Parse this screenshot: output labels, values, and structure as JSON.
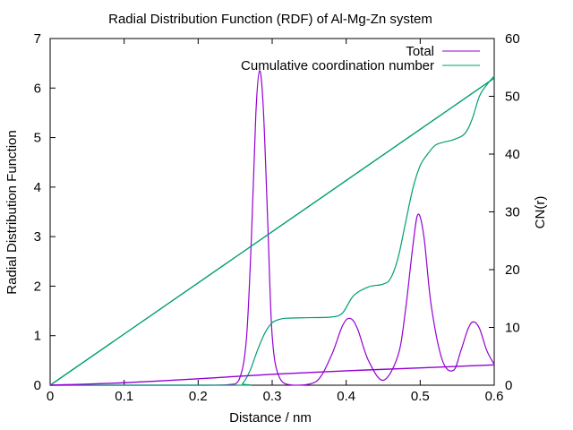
{
  "chart_data": {
    "type": "line",
    "title": "Radial Distribution Function (RDF) of Al-Mg-Zn system",
    "xlabel": "Distance / nm",
    "ylabel": "Radial Distribution Function",
    "y2label": "CN(r)",
    "xlim": [
      0,
      0.6
    ],
    "ylim": [
      0,
      7
    ],
    "y2lim": [
      0,
      60
    ],
    "xticks": [
      "0",
      "0.1",
      "0.2",
      "0.3",
      "0.4",
      "0.5",
      "0.6"
    ],
    "yticks": [
      "0",
      "1",
      "2",
      "3",
      "4",
      "5",
      "6",
      "7"
    ],
    "y2ticks": [
      "0",
      "10",
      "20",
      "30",
      "40",
      "50",
      "60"
    ],
    "grid": false,
    "legend_position": "top-right",
    "series": [
      {
        "name": "Total",
        "axis": "left",
        "color": "#9400d3",
        "x": [
          0,
          0.1,
          0.2,
          0.24,
          0.255,
          0.265,
          0.272,
          0.278,
          0.283,
          0.288,
          0.294,
          0.3,
          0.31,
          0.33,
          0.36,
          0.38,
          0.395,
          0.405,
          0.415,
          0.43,
          0.45,
          0.47,
          0.48,
          0.49,
          0.497,
          0.505,
          0.515,
          0.53,
          0.545,
          0.555,
          0.565,
          0.572,
          0.58,
          0.59,
          0.6
        ],
        "y": [
          0,
          0,
          0,
          0.01,
          0.1,
          0.9,
          3.0,
          5.5,
          6.35,
          5.6,
          3.3,
          1.0,
          0.15,
          0.0,
          0.08,
          0.6,
          1.2,
          1.35,
          1.15,
          0.5,
          0.1,
          0.6,
          1.5,
          2.8,
          3.45,
          3.0,
          1.6,
          0.5,
          0.3,
          0.7,
          1.15,
          1.28,
          1.15,
          0.7,
          0.42
        ]
      },
      {
        "name": "Cumulative coordination number",
        "axis": "right",
        "color": "#009e73",
        "x": [
          0,
          0.25,
          0.26,
          0.27,
          0.28,
          0.29,
          0.3,
          0.31,
          0.32,
          0.35,
          0.38,
          0.395,
          0.41,
          0.43,
          0.45,
          0.46,
          0.47,
          0.48,
          0.49,
          0.5,
          0.51,
          0.52,
          0.53,
          0.545,
          0.56,
          0.57,
          0.58,
          0.59,
          0.6
        ],
        "y": [
          0,
          0,
          0.3,
          2.5,
          6,
          9,
          10.8,
          11.4,
          11.6,
          11.7,
          11.8,
          12.5,
          15.5,
          17,
          17.5,
          18.5,
          22,
          28,
          34,
          38,
          40,
          41.5,
          42,
          42.5,
          43.5,
          46,
          50,
          52,
          53.5
        ]
      },
      {
        "name": "",
        "axis": "left",
        "color": "#009e73",
        "x": [
          0,
          0.6
        ],
        "y": [
          0,
          6.2
        ]
      },
      {
        "name": "",
        "axis": "left",
        "color": "#9400d3",
        "x": [
          0,
          0.1,
          0.2,
          0.3,
          0.4,
          0.5,
          0.6
        ],
        "y": [
          0,
          0.05,
          0.13,
          0.22,
          0.29,
          0.35,
          0.41
        ]
      }
    ]
  }
}
